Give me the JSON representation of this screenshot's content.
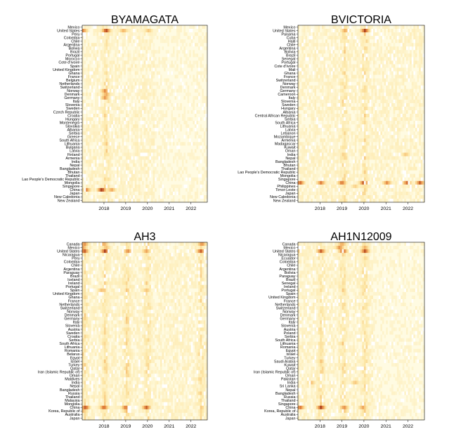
{
  "chart_data": [
    {
      "type": "heatmap",
      "title": "BYAMAGATA",
      "x_ticks": [
        "2018",
        "2019",
        "2020",
        "2021",
        "2022"
      ],
      "x_tick_years": [
        2018,
        2019,
        2020,
        2021,
        2022
      ],
      "xlim": [
        2017.0,
        2022.75
      ],
      "rows": [
        "Mexico",
        "United States",
        "Peru",
        "Colombia",
        "Chile",
        "Argentina",
        "Bolivia",
        "Brazil",
        "Portugal",
        "Morocco",
        "Cote d'Ivoire",
        "Spain",
        "United Kingdom",
        "Ghana",
        "France",
        "Belgium",
        "Netherlands",
        "Switzerland",
        "Norway",
        "Denmark",
        "Germany",
        "Italy",
        "Slovenia",
        "Sweden",
        "Czech Republic",
        "Croatia",
        "Hungary",
        "Montenegro",
        "Slovakia",
        "Albania",
        "Serbia",
        "Greece",
        "South Africa",
        "Lithuania",
        "Bulgaria",
        "Latvia",
        "Finland",
        "Armenia",
        "India",
        "Nepal",
        "Bangladesh",
        "Bhutan",
        "Thailand",
        "Lao People's Democratic Republic",
        "Mongolia",
        "Singapore",
        "China",
        "Japan",
        "New Caledonia",
        "New Zealand"
      ],
      "hot_rows": {
        "United States": [
          [
            2017.05,
            0.7
          ],
          [
            2018.1,
            0.95
          ],
          [
            2018.9,
            0.55
          ],
          [
            2020.05,
            0.45
          ]
        ],
        "China": [
          [
            2017.2,
            0.7
          ],
          [
            2017.9,
            1.0
          ],
          [
            2018.35,
            0.6
          ]
        ],
        "Norway": [
          [
            2018.05,
            0.7
          ]
        ],
        "Denmark": [
          [
            2018.1,
            0.6
          ]
        ],
        "Germany": [
          [
            2018.05,
            0.65
          ]
        ]
      },
      "season_centers": [
        2018.1
      ],
      "activity_end": 2020.3
    },
    {
      "type": "heatmap",
      "title": "BVICTORIA",
      "x_ticks": [
        "2018",
        "2019",
        "2020",
        "2021",
        "2022"
      ],
      "x_tick_years": [
        2018,
        2019,
        2020,
        2021,
        2022
      ],
      "xlim": [
        2017.0,
        2022.75
      ],
      "rows": [
        "Mexico",
        "United States",
        "Panama",
        "Cuba",
        "Haiti",
        "Chile",
        "Argentina",
        "Bolivia",
        "Brazil",
        "Senegal",
        "Portugal",
        "Cote d'Ivoire",
        "Mali",
        "Ghana",
        "France",
        "Switzerland",
        "Norway",
        "Denmark",
        "Germany",
        "Cameroon",
        "Italy",
        "Slovenia",
        "Sweden",
        "Hungary",
        "Albania",
        "Central African Republic",
        "Serbia",
        "South Africa",
        "Lithuania",
        "Latvia",
        "Lebanon",
        "Mozambique",
        "Armenia",
        "Madagascar",
        "Kuwait",
        "Oman",
        "India",
        "Nepal",
        "Bangladesh",
        "Bhutan",
        "Thailand",
        "Lao People's Democratic Republic",
        "Mongolia",
        "Singapore",
        "China",
        "Philippines",
        "Timor-Leste",
        "Japan",
        "New Caledonia",
        "New Zealand"
      ],
      "hot_rows": {
        "United States": [
          [
            2019.15,
            0.6
          ],
          [
            2020.05,
            0.95
          ]
        ],
        "China": [
          [
            2017.1,
            0.85
          ],
          [
            2018.05,
            0.75
          ],
          [
            2019.0,
            0.8
          ],
          [
            2020.0,
            0.95
          ],
          [
            2021.05,
            0.7
          ],
          [
            2021.95,
            0.8
          ],
          [
            2022.55,
            0.85
          ]
        ],
        "Philippines": [
          [
            2019.6,
            0.4
          ]
        ],
        "India": [
          [
            2021.9,
            0.45
          ]
        ]
      },
      "season_centers": [
        2019.1,
        2020.05
      ],
      "activity_end": 2022.7
    },
    {
      "type": "heatmap",
      "title": "AH3",
      "x_ticks": [
        "2018",
        "2019",
        "2020",
        "2021",
        "2022"
      ],
      "x_tick_years": [
        2018,
        2019,
        2020,
        2021,
        2022
      ],
      "xlim": [
        2017.0,
        2022.75
      ],
      "rows": [
        "Canada",
        "Mexico",
        "United States",
        "Nicaragua",
        "Peru",
        "Colombia",
        "Chile",
        "Argentina",
        "Paraguay",
        "Brazil",
        "Iceland",
        "Ireland",
        "Portugal",
        "Spain",
        "United Kingdom",
        "Ghana",
        "France",
        "Netherlands",
        "Switzerland",
        "Norway",
        "Denmark",
        "Germany",
        "Italy",
        "Slovenia",
        "Austria",
        "Sweden",
        "Croatia",
        "Serbia",
        "South Africa",
        "Lithuania",
        "Romania",
        "Belarus",
        "Egypt",
        "Israel",
        "Turkey",
        "Qatar",
        "Iran (Islamic Republic of)",
        "Oman",
        "Maldives",
        "India",
        "Nepal",
        "Bangladesh",
        "Russia",
        "Thailand",
        "Malaysia",
        "Mongolia",
        "China",
        "Korea, Republic of",
        "Australia",
        "Japan"
      ],
      "hot_rows": {
        "Canada": [
          [
            2017.1,
            0.7
          ],
          [
            2018.0,
            0.6
          ],
          [
            2022.5,
            0.7
          ]
        ],
        "Mexico": [
          [
            2017.05,
            0.6
          ],
          [
            2018.1,
            0.5
          ]
        ],
        "United States": [
          [
            2017.1,
            0.9
          ],
          [
            2018.05,
            0.95
          ],
          [
            2019.1,
            0.7
          ],
          [
            2019.95,
            0.6
          ],
          [
            2022.45,
            0.85
          ]
        ],
        "China": [
          [
            2017.15,
            0.9
          ],
          [
            2018.0,
            0.85
          ],
          [
            2019.0,
            0.8
          ],
          [
            2019.95,
            0.85
          ]
        ],
        "Korea, Republic of": [
          [
            2017.05,
            0.5
          ],
          [
            2019.05,
            0.5
          ]
        ],
        "Spain": [
          [
            2017.9,
            0.5
          ],
          [
            2019.95,
            0.45
          ]
        ]
      },
      "season_centers": [
        2017.1,
        2018.05,
        2019.05,
        2020.0,
        2022.45
      ],
      "activity_end": 2022.75
    },
    {
      "type": "heatmap",
      "title": "AH1N12009",
      "x_ticks": [
        "2018",
        "2019",
        "2020",
        "2021",
        "2022"
      ],
      "x_tick_years": [
        2018,
        2019,
        2020,
        2021,
        2022
      ],
      "xlim": [
        2017.0,
        2022.75
      ],
      "rows": [
        "Canada",
        "Mexico",
        "United States",
        "Nicaragua",
        "Ecuador",
        "Colombia",
        "Chile",
        "Argentina",
        "Bolivia",
        "Paraguay",
        "Brazil",
        "Senegal",
        "Ireland",
        "Portugal",
        "Spain",
        "United Kingdom",
        "France",
        "Netherlands",
        "Switzerland",
        "Norway",
        "Denmark",
        "Germany",
        "Italy",
        "Slovenia",
        "Austria",
        "Poland",
        "Serbia",
        "South Africa",
        "Lithuania",
        "Romania",
        "Egypt",
        "Israel",
        "Turkey",
        "Saudi Arabia",
        "Kuwait",
        "Qatar",
        "Iran (Islamic Republic of)",
        "Oman",
        "Pakistan",
        "India",
        "Sri Lanka",
        "Nepal",
        "Bangladesh",
        "Russia",
        "Thailand",
        "Singapore",
        "China",
        "Korea, Republic of",
        "Australia",
        "Japan"
      ],
      "hot_rows": {
        "Canada": [
          [
            2019.0,
            0.6
          ]
        ],
        "Mexico": [
          [
            2018.9,
            0.7
          ],
          [
            2020.05,
            0.55
          ]
        ],
        "United States": [
          [
            2017.0,
            0.45
          ],
          [
            2018.05,
            0.85
          ],
          [
            2019.05,
            0.9
          ],
          [
            2020.05,
            0.9
          ]
        ],
        "China": [
          [
            2017.1,
            0.8
          ],
          [
            2018.05,
            0.95
          ],
          [
            2019.1,
            0.7
          ],
          [
            2019.95,
            0.6
          ]
        ],
        "Korea, Republic of": [
          [
            2019.1,
            0.45
          ]
        ],
        "India": [
          [
            2017.6,
            0.5
          ],
          [
            2019.6,
            0.45
          ]
        ]
      },
      "season_centers": [
        2018.05,
        2019.05,
        2020.05
      ],
      "activity_end": 2020.4
    }
  ]
}
